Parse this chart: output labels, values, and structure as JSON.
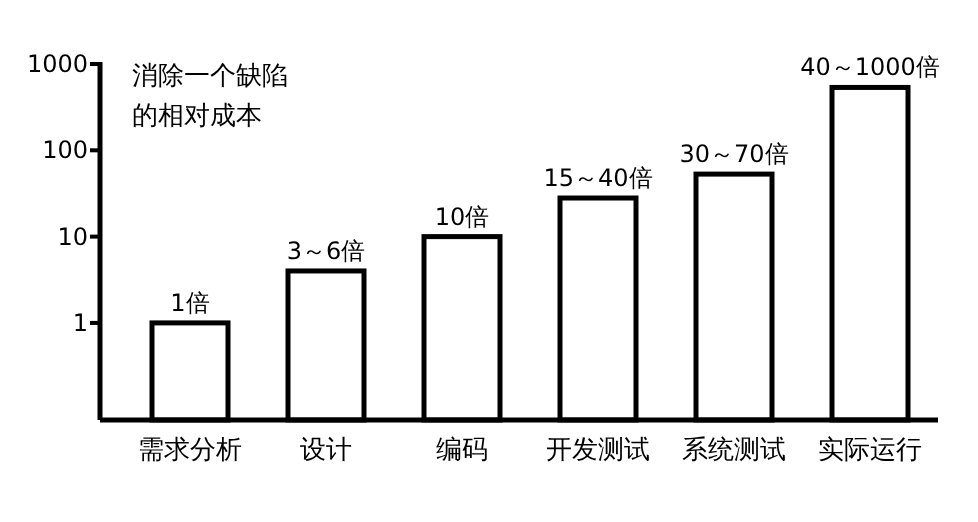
{
  "chart_data": {
    "type": "bar",
    "log": true,
    "ylim": [
      0.075,
      1000
    ],
    "yticks": [
      1,
      10,
      100,
      1000
    ],
    "grid": false,
    "color": "#ffffff",
    "categories": [
      "需求分析",
      "设计",
      "编码",
      "开发测试",
      "系统测试",
      "实际运行"
    ],
    "values": [
      1,
      4,
      10,
      28,
      53,
      535
    ],
    "annotations": [
      "消除一个缺陷",
      "的相对成本",
      {
        "text": "1倍",
        "x": "需求分析",
        "y": 1
      },
      {
        "text": "3～6倍",
        "x": "设计",
        "y": 4
      },
      {
        "text": "10倍",
        "x": "编码",
        "y": 10
      },
      {
        "text": "15～40倍",
        "x": "开发测试",
        "y": 28
      },
      {
        "text": "30～70倍",
        "x": "系统测试",
        "y": 53
      },
      {
        "text": "40～1000倍",
        "x": "实际运行",
        "y": 535
      }
    ]
  }
}
